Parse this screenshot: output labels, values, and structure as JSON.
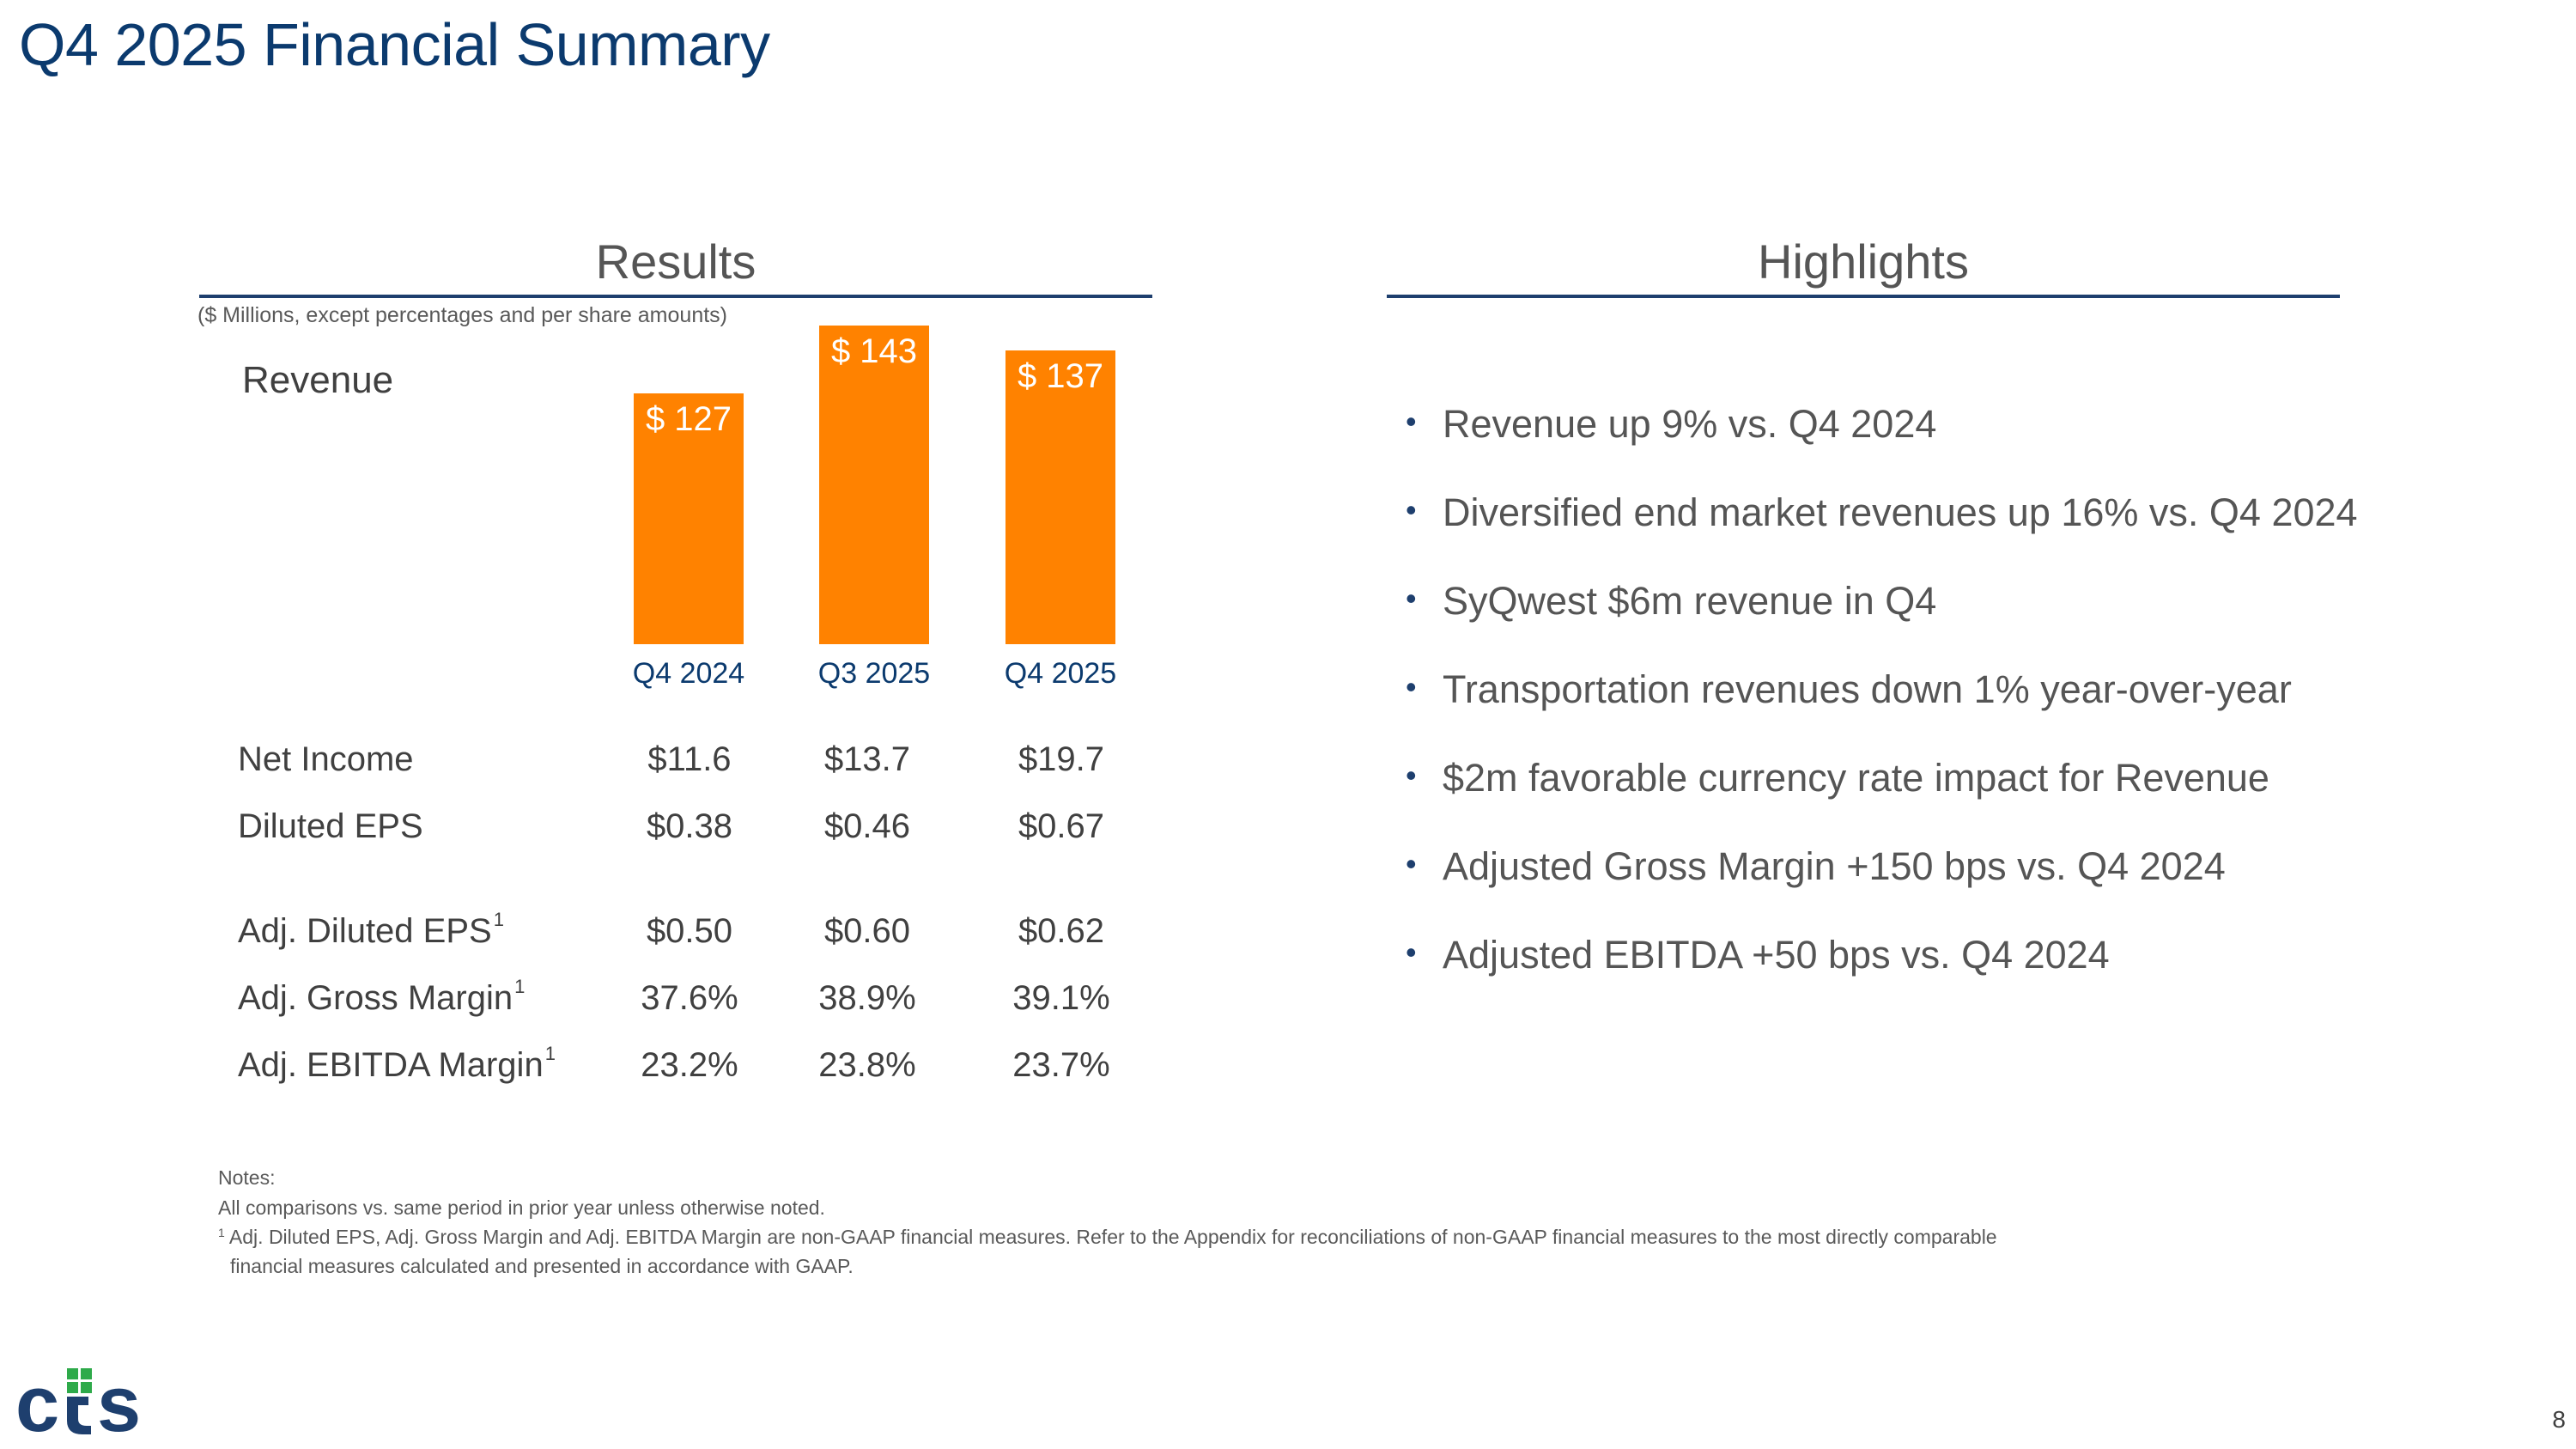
{
  "title": "Q4 2025 Financial Summary",
  "results": {
    "heading": "Results",
    "units_note": "($ Millions, except percentages and per share amounts)",
    "revenue_label": "Revenue"
  },
  "chart_data": {
    "type": "bar",
    "title": "Revenue",
    "categories": [
      "Q4 2024",
      "Q3 2025",
      "Q4 2025"
    ],
    "values": [
      127,
      143,
      137
    ],
    "value_labels": [
      "$ 127",
      "$ 143",
      "$ 137"
    ],
    "color": "#ff8200"
  },
  "table": {
    "rows": [
      {
        "label": "Net Income",
        "sup": "",
        "values": [
          "$11.6",
          "$13.7",
          "$19.7"
        ]
      },
      {
        "label": "Diluted EPS",
        "sup": "",
        "values": [
          "$0.38",
          "$0.46",
          "$0.67"
        ]
      },
      {
        "label": "Adj. Diluted EPS",
        "sup": "1",
        "values": [
          "$0.50",
          "$0.60",
          "$0.62"
        ]
      },
      {
        "label": "Adj. Gross Margin",
        "sup": "1",
        "values": [
          "37.6%",
          "38.9%",
          "39.1%"
        ]
      },
      {
        "label": "Adj. EBITDA Margin",
        "sup": "1",
        "values": [
          "23.2%",
          "23.8%",
          "23.7%"
        ]
      }
    ]
  },
  "highlights": {
    "heading": "Highlights",
    "items": [
      "Revenue up 9% vs. Q4 2024",
      "Diversified end market revenues up 16% vs. Q4 2024",
      "SyQwest $6m revenue in Q4",
      "Transportation revenues down 1% year-over-year",
      "$2m favorable currency rate impact for Revenue",
      "Adjusted Gross Margin +150 bps vs. Q4 2024",
      "Adjusted EBITDA +50 bps vs. Q4 2024"
    ]
  },
  "notes": {
    "heading": "Notes:",
    "line1": "All comparisons vs. same period in prior year unless otherwise noted.",
    "footnote_mark": "1",
    "line2": "Adj. Diluted EPS, Adj. Gross Margin and Adj. EBITDA Margin are non-GAAP financial measures. Refer to the Appendix for reconciliations of non-GAAP financial measures to the most directly comparable",
    "line3": "financial measures calculated and presented in accordance with GAAP."
  },
  "footer": {
    "page_number": "8",
    "logo_text": "cts",
    "colors": {
      "primary": "#1e3f6e",
      "accent": "#ff8200",
      "logo_green": "#2eaa4a"
    }
  }
}
